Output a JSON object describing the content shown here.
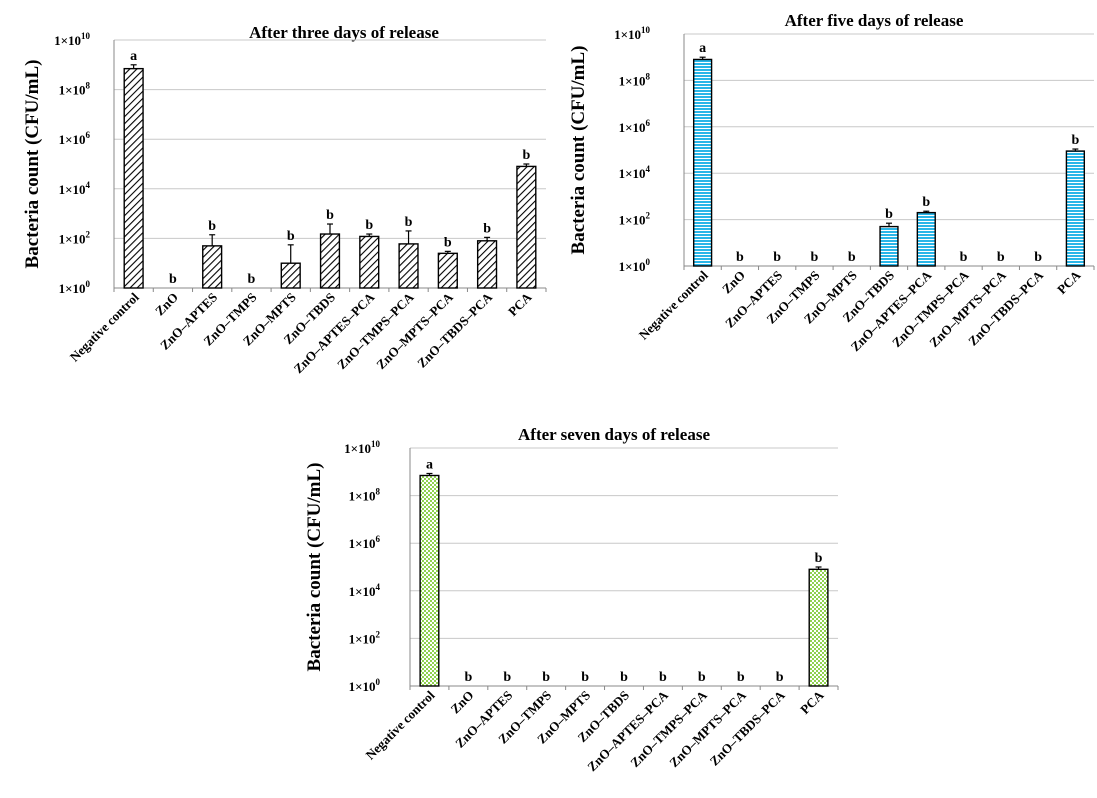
{
  "chart_data": [
    {
      "type": "bar",
      "title": "After three days of release",
      "ylabel": "Bacteria count (CFU/mL)",
      "yscale": "log",
      "ylim": [
        1,
        10000000000
      ],
      "yticks": [
        {
          "base": "1×10",
          "exp": "0",
          "value": 1
        },
        {
          "base": "1×10",
          "exp": "2",
          "value": 100
        },
        {
          "base": "1×10",
          "exp": "4",
          "value": 10000
        },
        {
          "base": "1×10",
          "exp": "6",
          "value": 1000000
        },
        {
          "base": "1×10",
          "exp": "8",
          "value": 100000000
        },
        {
          "base": "1×10",
          "exp": "10",
          "value": 10000000000
        }
      ],
      "categories": [
        "Negative control",
        "ZnO",
        "ZnO–APTES",
        "ZnO–TMPS",
        "ZnO–MPTS",
        "ZnO–TBDS",
        "ZnO–APTES–PCA",
        "ZnO–TMPS–PCA",
        "ZnO–MPTS–PCA",
        "ZnO–TBDS–PCA",
        "PCA"
      ],
      "values": [
        700000000,
        0,
        50,
        0,
        10,
        150,
        120,
        60,
        25,
        80,
        80000
      ],
      "error_upper": [
        1000000000,
        0,
        140,
        0,
        55,
        380,
        150,
        200,
        30,
        110,
        100000
      ],
      "significance": [
        "a",
        "b",
        "b",
        "b",
        "b",
        "b",
        "b",
        "b",
        "b",
        "b",
        "b"
      ],
      "bar_style": "hatched",
      "bar_color": "#000000",
      "grid": true
    },
    {
      "type": "bar",
      "title": "After five days of release",
      "ylabel": "Bacteria count (CFU/mL)",
      "yscale": "log",
      "ylim": [
        1,
        10000000000
      ],
      "yticks": [
        {
          "base": "1×10",
          "exp": "0",
          "value": 1
        },
        {
          "base": "1×10",
          "exp": "2",
          "value": 100
        },
        {
          "base": "1×10",
          "exp": "4",
          "value": 10000
        },
        {
          "base": "1×10",
          "exp": "6",
          "value": 1000000
        },
        {
          "base": "1×10",
          "exp": "8",
          "value": 100000000
        },
        {
          "base": "1×10",
          "exp": "10",
          "value": 10000000000
        }
      ],
      "categories": [
        "Negative control",
        "ZnO",
        "ZnO–APTES",
        "ZnO–TMPS",
        "ZnO–MPTS",
        "ZnO–TBDS",
        "ZnO–APTES–PCA",
        "ZnO–TMPS–PCA",
        "ZnO–MPTS–PCA",
        "ZnO–TBDS–PCA",
        "PCA"
      ],
      "values": [
        800000000,
        0,
        0,
        0,
        0,
        50,
        200,
        0,
        0,
        0,
        90000
      ],
      "error_upper": [
        1000000000,
        0,
        0,
        0,
        0,
        70,
        230,
        0,
        0,
        0,
        110000
      ],
      "significance": [
        "a",
        "b",
        "b",
        "b",
        "b",
        "b",
        "b",
        "b",
        "b",
        "b",
        "b"
      ],
      "bar_style": "horizontal-lines",
      "bar_color": "#29b6e8",
      "grid": true
    },
    {
      "type": "bar",
      "title": "After seven days of release",
      "ylabel": "Bacteria count (CFU/mL)",
      "yscale": "log",
      "ylim": [
        1,
        10000000000
      ],
      "yticks": [
        {
          "base": "1×10",
          "exp": "0",
          "value": 1
        },
        {
          "base": "1×10",
          "exp": "2",
          "value": 100
        },
        {
          "base": "1×10",
          "exp": "4",
          "value": 10000
        },
        {
          "base": "1×10",
          "exp": "6",
          "value": 1000000
        },
        {
          "base": "1×10",
          "exp": "8",
          "value": 100000000
        },
        {
          "base": "1×10",
          "exp": "10",
          "value": 10000000000
        }
      ],
      "categories": [
        "Negative control",
        "ZnO",
        "ZnO–APTES",
        "ZnO–TMPS",
        "ZnO–MPTS",
        "ZnO–TBDS",
        "ZnO–APTES–PCA",
        "ZnO–TMPS–PCA",
        "ZnO–MPTS–PCA",
        "ZnO–TBDS–PCA",
        "PCA"
      ],
      "values": [
        700000000,
        0,
        0,
        0,
        0,
        0,
        0,
        0,
        0,
        0,
        80000
      ],
      "error_upper": [
        850000000,
        0,
        0,
        0,
        0,
        0,
        0,
        0,
        0,
        0,
        100000
      ],
      "significance": [
        "a",
        "b",
        "b",
        "b",
        "b",
        "b",
        "b",
        "b",
        "b",
        "b",
        "b"
      ],
      "bar_style": "dotted",
      "bar_color": "#8fd14f",
      "grid": true
    }
  ]
}
